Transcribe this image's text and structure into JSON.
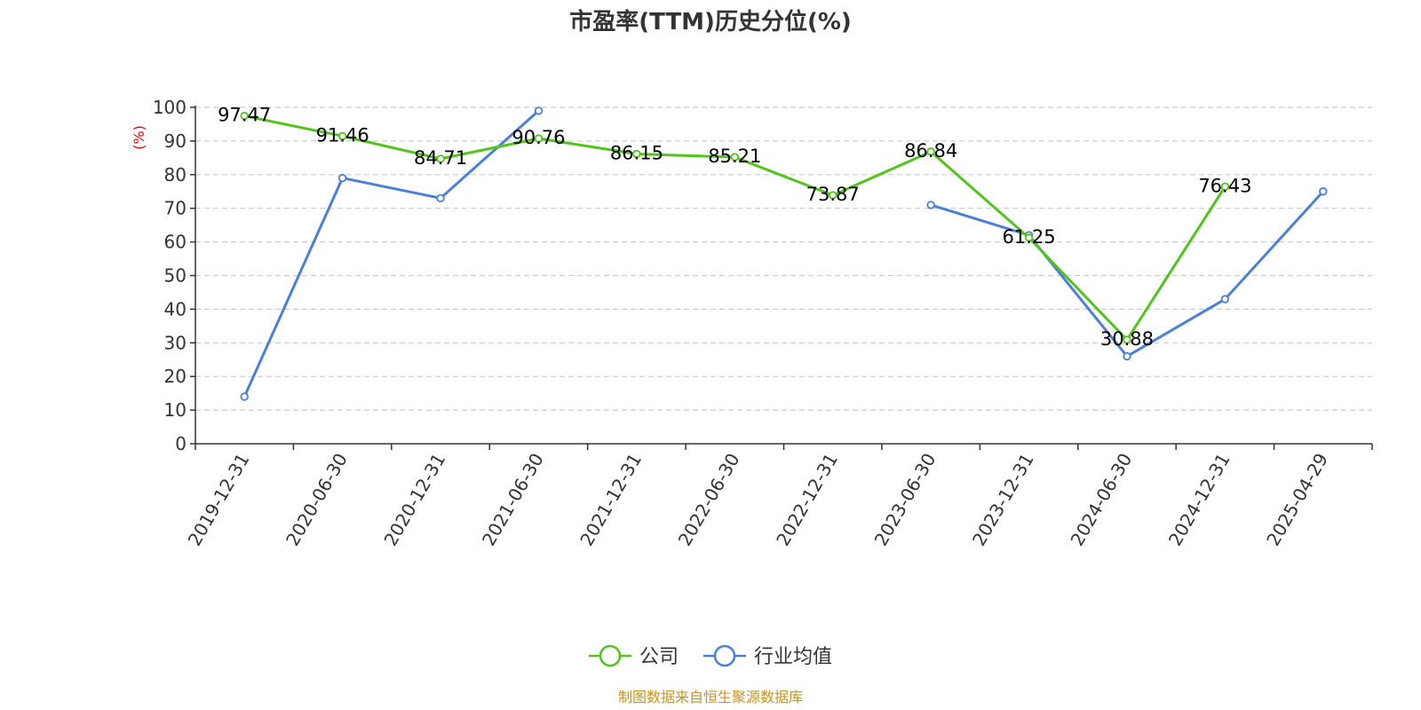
{
  "chart_data": {
    "type": "line",
    "title": "市盈率(TTM)历史分位(%)",
    "ylabel": "(%)",
    "ylim": [
      0,
      100
    ],
    "yticks": [
      0,
      10,
      20,
      30,
      40,
      50,
      60,
      70,
      80,
      90,
      100
    ],
    "categories": [
      "2019-12-31",
      "2020-06-30",
      "2020-12-31",
      "2021-06-30",
      "2021-12-31",
      "2022-06-30",
      "2022-12-31",
      "2023-06-30",
      "2023-12-31",
      "2024-06-30",
      "2024-12-31",
      "2025-04-29"
    ],
    "grid": true,
    "legend_position": "bottom",
    "series": [
      {
        "name": "公司",
        "color": "#52c41a",
        "values": [
          97.47,
          91.46,
          84.71,
          90.76,
          86.15,
          85.21,
          73.87,
          86.84,
          61.25,
          30.88,
          76.43,
          null
        ],
        "show_labels": true
      },
      {
        "name": "行业均值",
        "color": "#4a7fdb",
        "values": [
          14,
          79,
          73,
          99,
          null,
          null,
          null,
          71,
          62,
          26,
          43,
          75
        ],
        "show_labels": false
      }
    ],
    "source": "制图数据来自恒生聚源数据库",
    "source_color": "#c8941e",
    "ylabel_color": "#ff0000"
  }
}
